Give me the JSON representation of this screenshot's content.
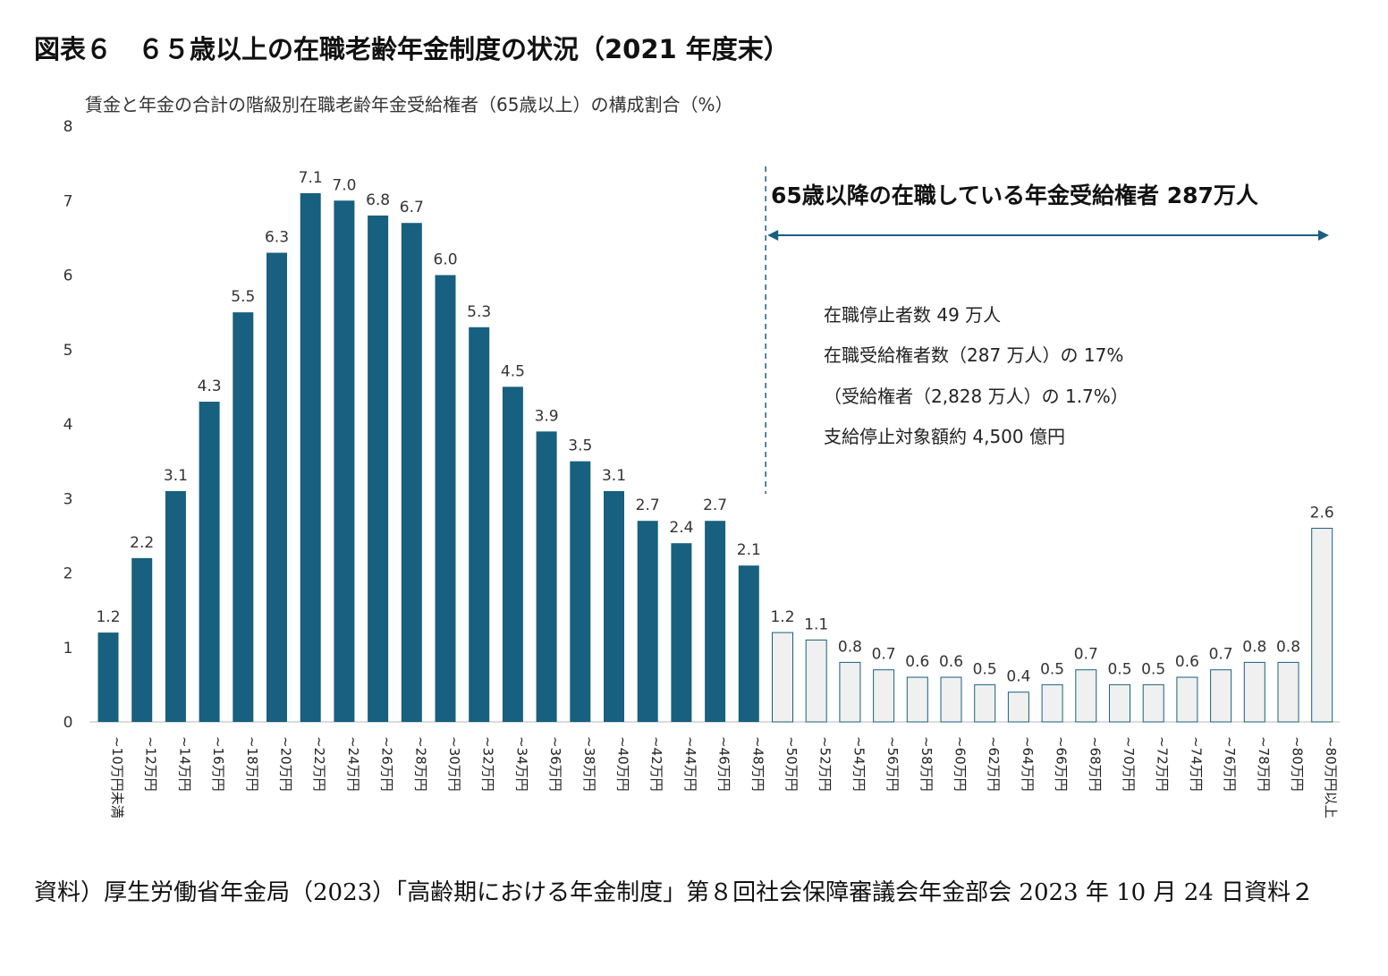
{
  "figure_title": "図表６　６５歳以上の在職老齢年金制度の状況（2021 年度末）",
  "source": "資料）厚生労働省年金局（2023）「高齢期における年金制度」第８回社会保障審議会年金部会 2023 年 10 月 24 日資料２",
  "colors": {
    "dark_bar": "#17607f",
    "light_bar_fill": "#f0f0f0",
    "light_bar_stroke": "#17607f",
    "arrow": "#17607f"
  },
  "chart_data": {
    "type": "bar",
    "title": "",
    "xlabel": "",
    "ylabel": "賃金と年金の合計の階級別在職老齢年金受給権者（65歳以上）の構成割合（%）",
    "ylim": [
      0,
      8
    ],
    "yticks": [
      "0",
      "1",
      "2",
      "3",
      "4",
      "5",
      "6",
      "7",
      "8"
    ],
    "grid": false,
    "categories": [
      "~10万円未満",
      "~12万円",
      "~14万円",
      "~16万円",
      "~18万円",
      "~20万円",
      "~22万円",
      "~24万円",
      "~26万円",
      "~28万円",
      "~30万円",
      "~32万円",
      "~34万円",
      "~36万円",
      "~38万円",
      "~40万円",
      "~42万円",
      "~44万円",
      "~46万円",
      "~48万円",
      "~50万円",
      "~52万円",
      "~54万円",
      "~56万円",
      "~58万円",
      "~60万円",
      "~62万円",
      "~64万円",
      "~66万円",
      "~68万円",
      "~70万円",
      "~72万円",
      "~74万円",
      "~76万円",
      "~78万円",
      "~80万円",
      "~80万円以上"
    ],
    "values": [
      1.2,
      2.2,
      3.1,
      4.3,
      5.5,
      6.3,
      7.1,
      7.0,
      6.8,
      6.7,
      6.0,
      5.3,
      4.5,
      3.9,
      3.5,
      3.1,
      2.7,
      2.4,
      2.7,
      2.1,
      1.2,
      1.1,
      0.8,
      0.7,
      0.6,
      0.6,
      0.5,
      0.4,
      0.5,
      0.7,
      0.5,
      0.5,
      0.6,
      0.7,
      0.8,
      0.8,
      2.6
    ],
    "value_labels": [
      "1.2",
      "2.2",
      "3.1",
      "4.3",
      "5.5",
      "6.3",
      "7.1",
      "7.0",
      "6.8",
      "6.7",
      "6.0",
      "5.3",
      "4.5",
      "3.9",
      "3.5",
      "3.1",
      "2.7",
      "2.4",
      "2.7",
      "2.1",
      "1.2",
      "1.1",
      "0.8",
      "0.7",
      "0.6",
      "0.6",
      "0.5",
      "0.4",
      "0.5",
      "0.7",
      "0.5",
      "0.5",
      "0.6",
      "0.7",
      "0.8",
      "0.8",
      "2.6"
    ],
    "highlighted_from": "~50万円",
    "annotations": {
      "headline": "65歳以降の在職している年金受給権者 287万人",
      "notes": [
        "在職停止者数 49 万人",
        "在職受給権者数（287 万人）の 17%",
        "（受給権者（2,828 万人）の 1.7%）",
        "支給停止対象額約 4,500 億円"
      ]
    }
  }
}
